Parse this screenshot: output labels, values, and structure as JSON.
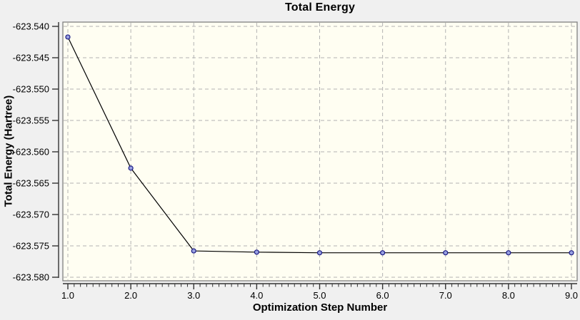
{
  "window": {
    "background": "#f0f0f0"
  },
  "chart_data": {
    "type": "line",
    "title": "Total Energy",
    "xlabel": "Optimization Step Number",
    "ylabel": "Total Energy (Hartree)",
    "x": [
      1.0,
      2.0,
      3.0,
      4.0,
      5.0,
      6.0,
      7.0,
      8.0,
      9.0
    ],
    "y": [
      -623.5417,
      -623.5626,
      -623.5758,
      -623.576,
      -623.5761,
      -623.5761,
      -623.5761,
      -623.5761,
      -623.5761
    ],
    "xlim": [
      1.0,
      9.0
    ],
    "ylim": [
      -623.58,
      -623.54
    ],
    "x_tick_labels": [
      "1.0",
      "2.0",
      "3.0",
      "4.0",
      "5.0",
      "6.0",
      "7.0",
      "8.0",
      "9.0"
    ],
    "y_tick_labels": [
      "-623.540",
      "-623.545",
      "-623.550",
      "-623.555",
      "-623.560",
      "-623.565",
      "-623.570",
      "-623.575",
      "-623.580"
    ],
    "x_minor_tick_step": 0.1,
    "grid": "dashed",
    "legend": "none",
    "marker": "circle",
    "colors": {
      "outer_background": "#f0f0f0",
      "plot_background": "#fffef2",
      "plot_border": "#808080",
      "grid": "#b3b3b3",
      "axis": "#333333",
      "line": "#000000",
      "marker_fill": "#98a0e0",
      "marker_stroke": "#1c1c86",
      "text": "#000000"
    }
  }
}
